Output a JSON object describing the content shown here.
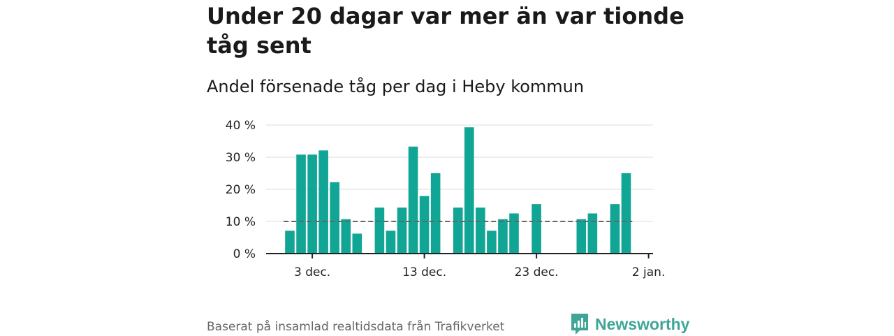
{
  "title": "Under 20 dagar var mer än var tionde tåg sent",
  "subtitle": "Andel försenade tåg per dag i Heby kommun",
  "source": "Baserat på insamlad realtidsdata från Trafikverket",
  "brand": {
    "name": "Newsworthy",
    "icon": "newsworthy-logo-icon",
    "color": "#3fa697"
  },
  "colors": {
    "bar": "#10a595",
    "reference_line": "#666666",
    "grid": "#dddddd",
    "axis": "#222222"
  },
  "chart_data": {
    "type": "bar",
    "x_unit": "date",
    "x": [
      "2023-12-01",
      "2023-12-02",
      "2023-12-03",
      "2023-12-04",
      "2023-12-05",
      "2023-12-06",
      "2023-12-07",
      "2023-12-08",
      "2023-12-09",
      "2023-12-10",
      "2023-12-11",
      "2023-12-12",
      "2023-12-13",
      "2023-12-14",
      "2023-12-15",
      "2023-12-16",
      "2023-12-17",
      "2023-12-18",
      "2023-12-19",
      "2023-12-20",
      "2023-12-21",
      "2023-12-22",
      "2023-12-23",
      "2023-12-24",
      "2023-12-25",
      "2023-12-26",
      "2023-12-27",
      "2023-12-28",
      "2023-12-29",
      "2023-12-30",
      "2023-12-31"
    ],
    "values": [
      7.1,
      30.8,
      30.8,
      32.1,
      22.2,
      10.7,
      6.2,
      null,
      14.3,
      7.1,
      14.3,
      33.3,
      17.9,
      25.0,
      null,
      14.3,
      39.3,
      14.3,
      7.1,
      10.7,
      12.5,
      null,
      15.4,
      null,
      null,
      null,
      10.7,
      12.5,
      null,
      15.4,
      25.0
    ],
    "reference_line": 10,
    "ylim": [
      0,
      40
    ],
    "yticks": [
      0,
      10,
      20,
      30,
      40
    ],
    "ytick_labels": [
      "0 %",
      "10 %",
      "20 %",
      "30 %",
      "40 %"
    ],
    "xticks": [
      "2023-12-03",
      "2023-12-13",
      "2023-12-23",
      "2024-01-02"
    ],
    "xtick_labels": [
      "3 dec.",
      "13 dec.",
      "23 dec.",
      "2 jan."
    ],
    "xlabel": "",
    "ylabel": "",
    "grid": true
  }
}
